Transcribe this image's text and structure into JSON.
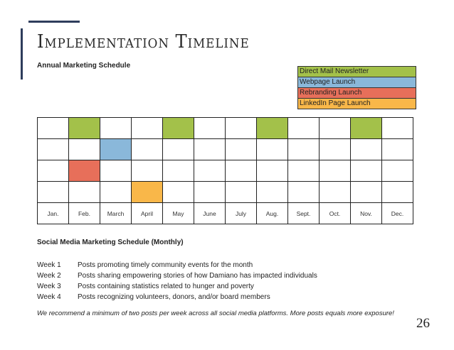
{
  "title": "Implementation Timeline",
  "subtitle": "Annual Marketing Schedule",
  "legend": [
    {
      "label": "Direct Mail Newsletter",
      "color": "#a3c14a"
    },
    {
      "label": "Webpage Launch",
      "color": "#8ab8da"
    },
    {
      "label": "Rebranding Launch",
      "color": "#e76f5a"
    },
    {
      "label": "LinkedIn Page Launch",
      "color": "#f9b749"
    }
  ],
  "months": [
    "Jan.",
    "Feb.",
    "March",
    "April",
    "May",
    "June",
    "July",
    "Aug.",
    "Sept.",
    "Oct.",
    "Nov.",
    "Dec."
  ],
  "schedule": [
    {
      "activity": "Direct Mail Newsletter",
      "months": [
        1,
        4,
        7,
        10
      ]
    },
    {
      "activity": "Webpage Launch",
      "months": [
        2
      ]
    },
    {
      "activity": "Rebranding Launch",
      "months": [
        1
      ]
    },
    {
      "activity": "LinkedIn Page Launch",
      "months": [
        3
      ]
    }
  ],
  "social": {
    "title": "Social Media Marketing Schedule (Monthly)",
    "weeks": [
      {
        "label": "Week 1",
        "text": "Posts promoting timely community events for the month"
      },
      {
        "label": "Week 2",
        "text": "Posts sharing empowering stories of how Damiano has impacted individuals"
      },
      {
        "label": "Week 3",
        "text": "Posts containing statistics related to hunger and poverty"
      },
      {
        "label": "Week 4",
        "text": "Posts recognizing volunteers, donors, and/or board members"
      }
    ],
    "note": "We recommend a minimum of two posts per week across all social media platforms. More posts equals more exposure!"
  },
  "page_number": "26",
  "accent_color": "#2e3d5c"
}
